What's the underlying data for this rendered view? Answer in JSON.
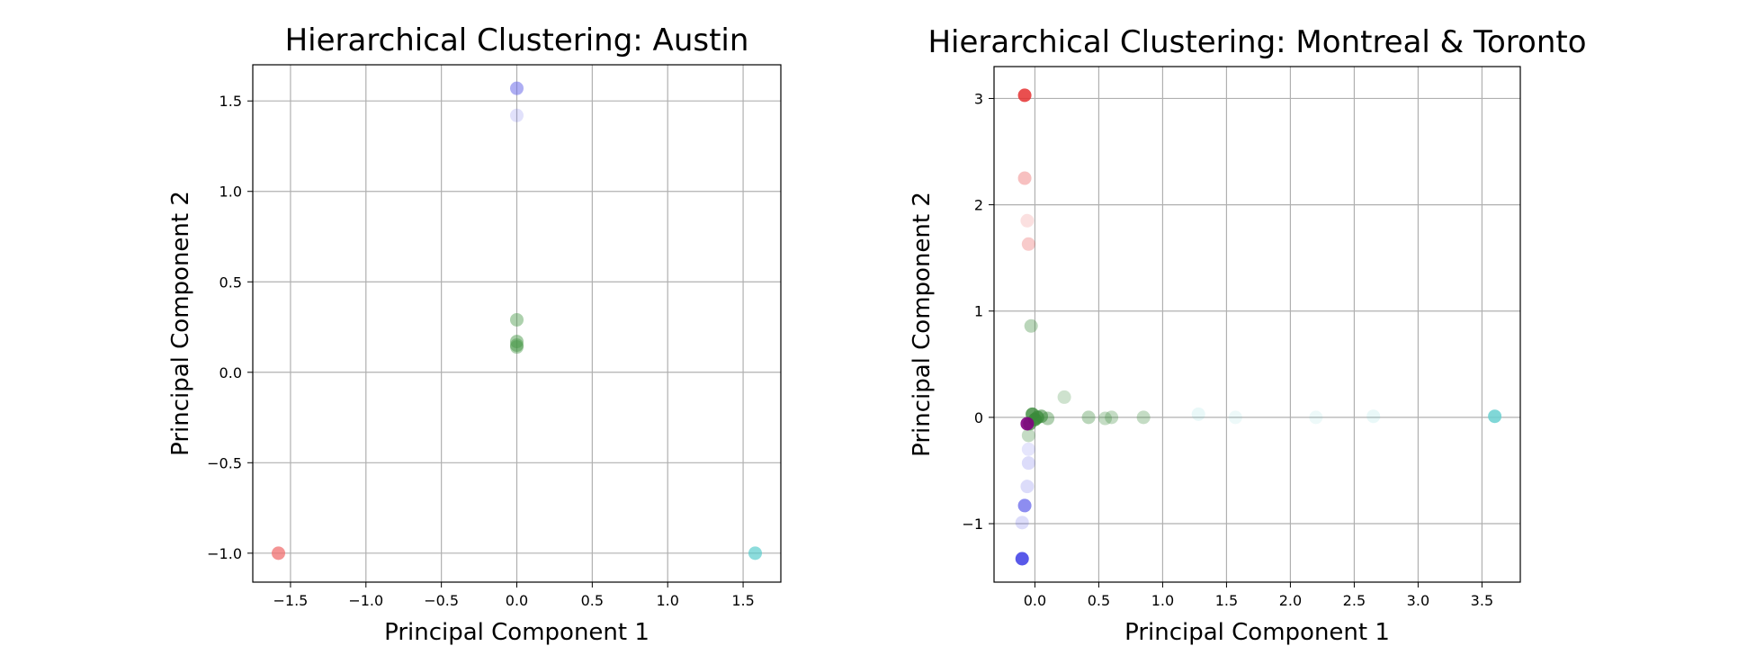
{
  "chart_data": [
    {
      "type": "scatter",
      "title": "Hierarchical Clustering: Austin",
      "xlabel": "Principal Component 1",
      "ylabel": "Principal Component 2",
      "xlim": [
        -1.75,
        1.75
      ],
      "ylim": [
        -1.16,
        1.7
      ],
      "xticks": [
        -1.5,
        -1.0,
        -0.5,
        0.0,
        0.5,
        1.0,
        1.5
      ],
      "xtick_labels": [
        "−1.5",
        "−1.0",
        "−0.5",
        "0.0",
        "0.5",
        "1.0",
        "1.5"
      ],
      "yticks": [
        -1.0,
        -0.5,
        0.0,
        0.5,
        1.0,
        1.5
      ],
      "ytick_labels": [
        "−1.0",
        "−0.5",
        "0.0",
        "0.5",
        "1.0",
        "1.5"
      ],
      "grid": true,
      "series": [
        {
          "color": "#6b6bea",
          "points": [
            [
              0.0,
              1.57,
              0.55
            ],
            [
              0.0,
              1.42,
              0.2
            ]
          ]
        },
        {
          "color": "#4a9a4a",
          "points": [
            [
              0.0,
              0.29,
              0.45
            ],
            [
              0.0,
              0.17,
              0.5
            ],
            [
              0.0,
              0.15,
              0.5
            ],
            [
              0.0,
              0.14,
              0.45
            ]
          ]
        },
        {
          "color": "#f07070",
          "points": [
            [
              -1.58,
              -1.0,
              0.75
            ]
          ]
        },
        {
          "color": "#4fc9c9",
          "points": [
            [
              1.58,
              -1.0,
              0.65
            ]
          ]
        }
      ]
    },
    {
      "type": "scatter",
      "title": "Hierarchical Clustering: Montreal & Toronto",
      "xlabel": "Principal Component 1",
      "ylabel": "Principal Component 2",
      "xlim": [
        -0.32,
        3.8
      ],
      "ylim": [
        -1.55,
        3.3
      ],
      "xticks": [
        0.0,
        0.5,
        1.0,
        1.5,
        2.0,
        2.5,
        3.0,
        3.5
      ],
      "xtick_labels": [
        "0.0",
        "0.5",
        "1.0",
        "1.5",
        "2.0",
        "2.5",
        "3.0",
        "3.5"
      ],
      "yticks": [
        -1,
        0,
        1,
        2,
        3
      ],
      "ytick_labels": [
        "−1",
        "0",
        "1",
        "2",
        "3"
      ],
      "grid": true,
      "series": [
        {
          "color": "#e53030",
          "points": [
            [
              -0.08,
              3.03,
              0.85
            ],
            [
              -0.08,
              2.25,
              0.3
            ],
            [
              -0.06,
              1.85,
              0.15
            ],
            [
              -0.05,
              1.63,
              0.25
            ]
          ]
        },
        {
          "color": "#3a8a3a",
          "points": [
            [
              -0.03,
              0.86,
              0.35
            ],
            [
              0.23,
              0.19,
              0.25
            ],
            [
              0.42,
              0.0,
              0.35
            ],
            [
              0.55,
              -0.01,
              0.3
            ],
            [
              0.6,
              0.0,
              0.3
            ],
            [
              0.85,
              0.0,
              0.3
            ],
            [
              0.1,
              -0.01,
              0.4
            ],
            [
              0.05,
              0.01,
              0.6
            ],
            [
              0.02,
              0.0,
              0.75
            ],
            [
              0.0,
              -0.02,
              0.85
            ],
            [
              -0.02,
              0.03,
              0.8
            ],
            [
              -0.04,
              -0.06,
              0.7
            ],
            [
              -0.05,
              -0.17,
              0.3
            ]
          ]
        },
        {
          "color": "#6ad0d0",
          "points": [
            [
              1.28,
              0.03,
              0.15
            ],
            [
              1.57,
              0.0,
              0.12
            ],
            [
              2.2,
              0.0,
              0.12
            ],
            [
              2.65,
              0.01,
              0.15
            ],
            [
              3.6,
              0.01,
              0.85
            ]
          ]
        },
        {
          "color": "#800080",
          "points": [
            [
              -0.06,
              -0.06,
              0.9
            ]
          ]
        },
        {
          "color": "#5050e8",
          "points": [
            [
              -0.05,
              -0.3,
              0.15
            ],
            [
              -0.05,
              -0.43,
              0.2
            ],
            [
              -0.06,
              -0.65,
              0.2
            ],
            [
              -0.08,
              -0.83,
              0.65
            ],
            [
              -0.1,
              -0.99,
              0.2
            ],
            [
              -0.1,
              -1.33,
              0.95
            ]
          ]
        }
      ]
    }
  ]
}
